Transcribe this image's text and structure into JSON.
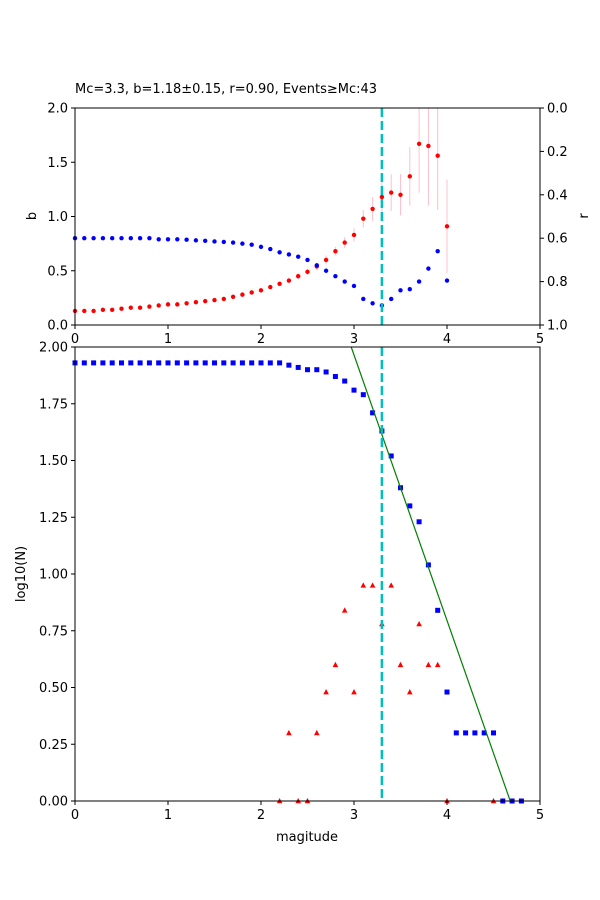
{
  "chart_data": [
    {
      "type": "scatter",
      "title": "Mc=3.3, b=1.18±0.15, r=0.90, Events≥Mc:43",
      "xlabel": "",
      "ylabel": "b",
      "ylabel_right": "r",
      "xlim": [
        0,
        5
      ],
      "ylim": [
        0,
        2
      ],
      "y2lim": [
        1,
        0
      ],
      "xticks": [
        "0",
        "1",
        "2",
        "3",
        "4",
        "5"
      ],
      "yticks": [
        "0.0",
        "0.5",
        "1.0",
        "1.5",
        "2.0"
      ],
      "y2ticks": [
        "0.0",
        "0.2",
        "0.4",
        "0.6",
        "0.8",
        "1.0"
      ],
      "mc_line": 3.3,
      "colors": {
        "b_value": "#ff0000",
        "r_value": "#0000ff",
        "error_bar": "#ffc0cb",
        "mc_line": "#00bfbf"
      },
      "series": [
        {
          "axis": "left",
          "marker": "circle",
          "x": [
            0,
            0.1,
            0.2,
            0.3,
            0.4,
            0.5,
            0.6,
            0.7,
            0.8,
            0.9,
            1.0,
            1.1,
            1.2,
            1.3,
            1.4,
            1.5,
            1.6,
            1.7,
            1.8,
            1.9,
            2.0,
            2.1,
            2.2,
            2.3,
            2.4,
            2.5,
            2.6,
            2.7,
            2.8,
            2.9,
            3.0,
            3.1,
            3.2,
            3.3,
            3.4,
            3.5,
            3.6,
            3.7,
            3.8,
            3.9,
            4.0
          ],
          "y": [
            0.13,
            0.13,
            0.13,
            0.14,
            0.14,
            0.15,
            0.16,
            0.16,
            0.17,
            0.18,
            0.19,
            0.19,
            0.2,
            0.21,
            0.22,
            0.23,
            0.24,
            0.26,
            0.28,
            0.3,
            0.32,
            0.35,
            0.38,
            0.41,
            0.45,
            0.49,
            0.54,
            0.6,
            0.68,
            0.76,
            0.83,
            0.98,
            1.07,
            1.18,
            1.22,
            1.2,
            1.37,
            1.67,
            1.65,
            1.56,
            0.91
          ],
          "err": [
            0.01,
            0.01,
            0.01,
            0.01,
            0.01,
            0.01,
            0.01,
            0.01,
            0.01,
            0.01,
            0.01,
            0.01,
            0.01,
            0.01,
            0.01,
            0.01,
            0.01,
            0.02,
            0.02,
            0.02,
            0.02,
            0.02,
            0.02,
            0.02,
            0.03,
            0.03,
            0.03,
            0.04,
            0.04,
            0.05,
            0.06,
            0.08,
            0.11,
            0.15,
            0.17,
            0.19,
            0.27,
            0.45,
            0.55,
            0.5,
            0.43
          ]
        },
        {
          "axis": "right",
          "marker": "circle",
          "x": [
            0,
            0.1,
            0.2,
            0.3,
            0.4,
            0.5,
            0.6,
            0.7,
            0.8,
            0.9,
            1.0,
            1.1,
            1.2,
            1.3,
            1.4,
            1.5,
            1.6,
            1.7,
            1.8,
            1.9,
            2.0,
            2.1,
            2.2,
            2.3,
            2.4,
            2.5,
            2.6,
            2.7,
            2.8,
            2.9,
            3.0,
            3.1,
            3.2,
            3.3,
            3.4,
            3.5,
            3.6,
            3.7,
            3.8,
            3.9,
            4.0
          ],
          "y": [
            0.6,
            0.6,
            0.6,
            0.6,
            0.6,
            0.6,
            0.6,
            0.6,
            0.6,
            0.605,
            0.605,
            0.605,
            0.607,
            0.61,
            0.612,
            0.615,
            0.617,
            0.62,
            0.625,
            0.63,
            0.64,
            0.65,
            0.665,
            0.675,
            0.685,
            0.7,
            0.725,
            0.75,
            0.775,
            0.8,
            0.82,
            0.88,
            0.9,
            0.91,
            0.88,
            0.84,
            0.835,
            0.8,
            0.74,
            0.66,
            0.795
          ]
        }
      ]
    },
    {
      "type": "scatter",
      "title": "",
      "xlabel": "magitude",
      "ylabel": "log10(N)",
      "xlim": [
        0,
        5
      ],
      "ylim": [
        0,
        2
      ],
      "xticks": [
        "0",
        "1",
        "2",
        "3",
        "4",
        "5"
      ],
      "yticks": [
        "0.00",
        "0.25",
        "0.50",
        "0.75",
        "1.00",
        "1.25",
        "1.50",
        "1.75",
        "2.00"
      ],
      "mc_line": 3.3,
      "colors": {
        "cumulative": "#0000ff",
        "non_cumulative": "#ff0000",
        "fit": "#008000",
        "mc_line": "#00bfbf"
      },
      "series": [
        {
          "marker": "square",
          "x": [
            0,
            0.1,
            0.2,
            0.3,
            0.4,
            0.5,
            0.6,
            0.7,
            0.8,
            0.9,
            1.0,
            1.1,
            1.2,
            1.3,
            1.4,
            1.5,
            1.6,
            1.7,
            1.8,
            1.9,
            2.0,
            2.1,
            2.2,
            2.3,
            2.4,
            2.5,
            2.6,
            2.7,
            2.8,
            2.9,
            3.0,
            3.1,
            3.2,
            3.3,
            3.4,
            3.5,
            3.6,
            3.7,
            3.8,
            3.9,
            4.0,
            4.1,
            4.2,
            4.3,
            4.4,
            4.5,
            4.6,
            4.7,
            4.8
          ],
          "y": [
            1.93,
            1.93,
            1.93,
            1.93,
            1.93,
            1.93,
            1.93,
            1.93,
            1.93,
            1.93,
            1.93,
            1.93,
            1.93,
            1.93,
            1.93,
            1.93,
            1.93,
            1.93,
            1.93,
            1.93,
            1.93,
            1.93,
            1.93,
            1.92,
            1.91,
            1.9,
            1.9,
            1.89,
            1.87,
            1.85,
            1.81,
            1.79,
            1.71,
            1.63,
            1.52,
            1.38,
            1.3,
            1.23,
            1.04,
            0.84,
            0.48,
            0.3,
            0.3,
            0.3,
            0.3,
            0.3,
            0,
            0,
            0
          ]
        },
        {
          "marker": "triangle",
          "x": [
            2.2,
            2.3,
            2.4,
            2.5,
            2.6,
            2.7,
            2.8,
            2.9,
            3.0,
            3.1,
            3.2,
            3.3,
            3.4,
            3.5,
            3.6,
            3.7,
            3.8,
            3.9,
            4.0,
            4.5
          ],
          "y": [
            0,
            0.3,
            0,
            0,
            0.3,
            0.48,
            0.6,
            0.84,
            0.48,
            0.95,
            0.95,
            0.78,
            0.95,
            0.6,
            0.48,
            0.78,
            0.6,
            0.6,
            0,
            0
          ]
        }
      ],
      "fit_line": {
        "x": [
          2.97,
          4.68
        ],
        "y": [
          2.0,
          0.0
        ]
      }
    }
  ]
}
